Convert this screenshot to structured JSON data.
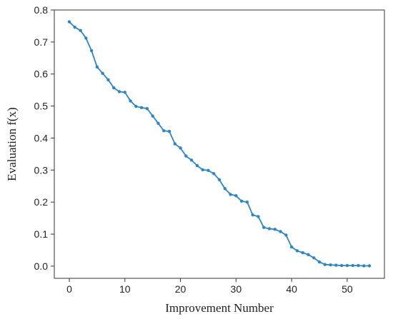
{
  "chart_data": {
    "type": "line",
    "title": "",
    "xlabel": "Improvement Number",
    "ylabel": "Evaluation f(x)",
    "xlim": [
      -2.7,
      56.7
    ],
    "ylim": [
      -0.038,
      0.8
    ],
    "xticks": [
      0,
      10,
      20,
      30,
      40,
      50
    ],
    "yticks": [
      0.0,
      0.1,
      0.2,
      0.3,
      0.4,
      0.5,
      0.6,
      0.7,
      0.8
    ],
    "xtick_labels": [
      "0",
      "10",
      "20",
      "30",
      "40",
      "50"
    ],
    "ytick_labels": [
      "0.0",
      "0.1",
      "0.2",
      "0.3",
      "0.4",
      "0.5",
      "0.6",
      "0.7",
      "0.8"
    ],
    "grid": false,
    "series": [
      {
        "color": "#2e86c1",
        "x": [
          0,
          1,
          2,
          3,
          4,
          5,
          6,
          7,
          8,
          9,
          10,
          11,
          12,
          13,
          14,
          15,
          16,
          17,
          18,
          19,
          20,
          21,
          22,
          23,
          24,
          25,
          26,
          27,
          28,
          29,
          30,
          31,
          32,
          33,
          34,
          35,
          36,
          37,
          38,
          39,
          40,
          41,
          42,
          43,
          44,
          45,
          46,
          47,
          48,
          49,
          50,
          51,
          52,
          53,
          54
        ],
        "values": [
          0.763,
          0.746,
          0.736,
          0.712,
          0.673,
          0.622,
          0.602,
          0.582,
          0.557,
          0.545,
          0.543,
          0.516,
          0.499,
          0.495,
          0.492,
          0.469,
          0.446,
          0.423,
          0.421,
          0.382,
          0.369,
          0.344,
          0.331,
          0.314,
          0.301,
          0.299,
          0.289,
          0.27,
          0.242,
          0.224,
          0.22,
          0.203,
          0.2,
          0.16,
          0.155,
          0.121,
          0.117,
          0.115,
          0.108,
          0.097,
          0.06,
          0.048,
          0.042,
          0.036,
          0.026,
          0.013,
          0.005,
          0.004,
          0.003,
          0.002,
          0.002,
          0.002,
          0.002,
          0.001,
          0.001
        ]
      }
    ]
  }
}
